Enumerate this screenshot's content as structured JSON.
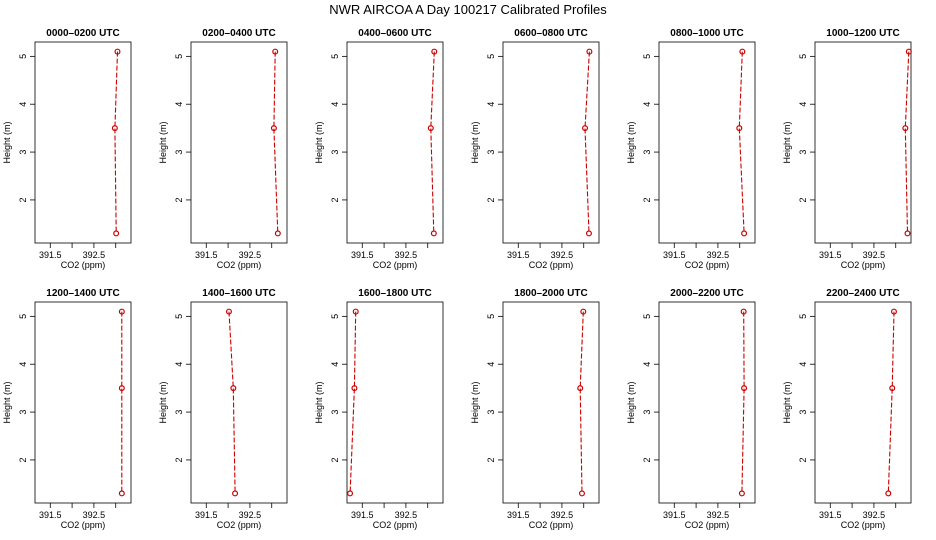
{
  "title": "NWR AIRCOA A  Day 100217  Calibrated Profiles",
  "chart_data": {
    "type": "line",
    "xlabel": "CO2 (ppm)",
    "ylabel": "Height (m)",
    "xlim": [
      391.15,
      393.35
    ],
    "ylim": [
      1.1,
      5.3
    ],
    "xticks": [
      391.5,
      392.0,
      392.5,
      393.0
    ],
    "xtick_labels": [
      "391.5",
      "",
      "392.5",
      ""
    ],
    "yticks": [
      2,
      3,
      4,
      5
    ],
    "ytick_labels": [
      "2",
      "3",
      "4",
      "5"
    ],
    "color": "#cc0000",
    "line_style": "dashed",
    "panels": [
      {
        "title": "0000–0200 UTC",
        "x": [
          393.04,
          392.98,
          393.01
        ],
        "y": [
          5.1,
          3.5,
          1.3
        ]
      },
      {
        "title": "0200–0400 UTC",
        "x": [
          393.08,
          393.05,
          393.14
        ],
        "y": [
          5.1,
          3.5,
          1.3
        ]
      },
      {
        "title": "0400–0600 UTC",
        "x": [
          393.15,
          393.07,
          393.14
        ],
        "y": [
          5.1,
          3.5,
          1.3
        ]
      },
      {
        "title": "0600–0800 UTC",
        "x": [
          393.13,
          393.03,
          393.12
        ],
        "y": [
          5.1,
          3.5,
          1.3
        ]
      },
      {
        "title": "0800–1000 UTC",
        "x": [
          393.06,
          392.99,
          393.1
        ],
        "y": [
          5.1,
          3.5,
          1.3
        ]
      },
      {
        "title": "1000–1200 UTC",
        "x": [
          393.3,
          393.22,
          393.27
        ],
        "y": [
          5.1,
          3.5,
          1.3
        ]
      },
      {
        "title": "1200–1400 UTC",
        "x": [
          393.14,
          393.14,
          393.14
        ],
        "y": [
          5.1,
          3.5,
          1.3
        ]
      },
      {
        "title": "1400–1600 UTC",
        "x": [
          392.02,
          392.12,
          392.16
        ],
        "y": [
          5.1,
          3.5,
          1.3
        ]
      },
      {
        "title": "1600–1800 UTC",
        "x": [
          391.35,
          391.32,
          391.22
        ],
        "y": [
          5.1,
          3.5,
          1.3
        ]
      },
      {
        "title": "1800–2000 UTC",
        "x": [
          392.99,
          392.92,
          392.96
        ],
        "y": [
          5.1,
          3.5,
          1.3
        ]
      },
      {
        "title": "2000–2200 UTC",
        "x": [
          393.09,
          393.1,
          393.05
        ],
        "y": [
          5.1,
          3.5,
          1.3
        ]
      },
      {
        "title": "2200–2400 UTC",
        "x": [
          392.96,
          392.92,
          392.83
        ],
        "y": [
          5.1,
          3.5,
          1.3
        ]
      }
    ]
  }
}
